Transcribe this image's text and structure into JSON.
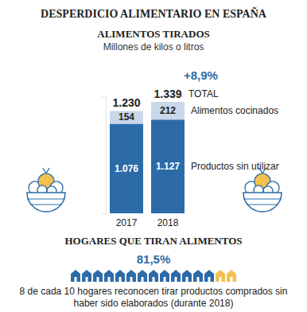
{
  "title": "DESPERDICIO ALIMENTARIO EN ESPAÑA",
  "chart_data": {
    "type": "bar",
    "title": "ALIMENTOS TIRADOS",
    "subtitle": "Millones de kilos o litros",
    "categories": [
      "2017",
      "2018"
    ],
    "series": [
      {
        "name": "Productos sin utilizar",
        "color": "#2c6ba8",
        "values": [
          1076,
          1127
        ],
        "value_labels": [
          "1.076",
          "1.127"
        ]
      },
      {
        "name": "Alimentos cocinados",
        "color": "#c8d8ea",
        "values": [
          154,
          212
        ],
        "value_labels": [
          "154",
          "212"
        ]
      }
    ],
    "stacked": true,
    "data_labels": true,
    "totals": [
      1230,
      1339
    ],
    "total_labels": [
      "1.230",
      "1.339"
    ],
    "total_label": "TOTAL",
    "change_label": "+8,9%",
    "ylim": [
      0,
      1400
    ],
    "yticks": [
      0,
      1400
    ],
    "tick_labels": "x",
    "grid": false
  },
  "section2": {
    "title": "HOGARES QUE TIRAN ALIMENTOS",
    "value": 81.5,
    "value_label": "81,5%",
    "caption": [
      "8 de cada 10 hogares reconocen tirar productos comprados sin",
      "haber sido elaborados (durante 2018)"
    ]
  }
}
